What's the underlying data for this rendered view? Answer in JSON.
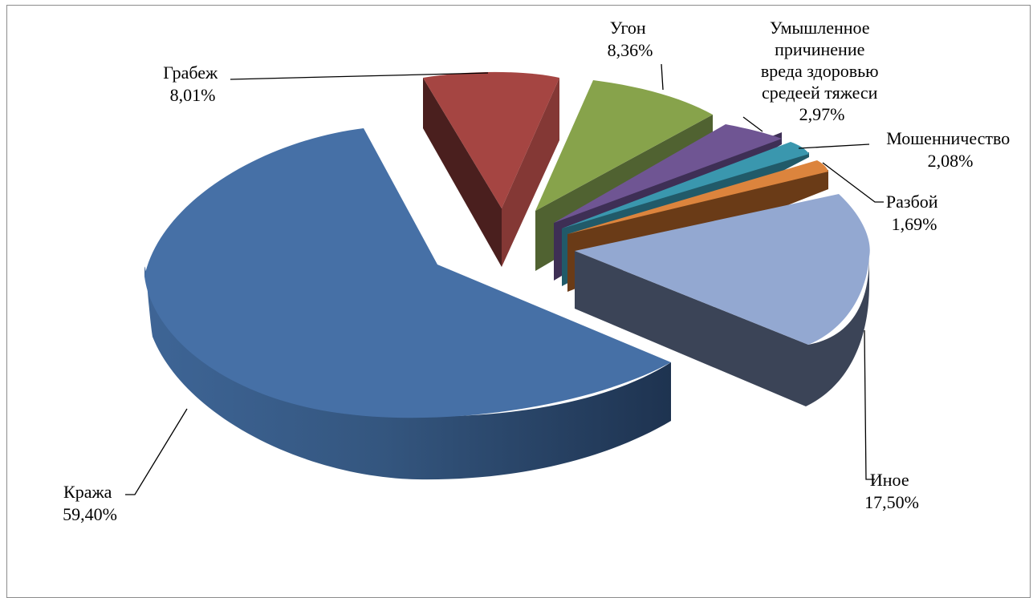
{
  "chart_data": {
    "type": "pie",
    "title": "",
    "style": "3d-exploded",
    "slices": [
      {
        "label": "Кража",
        "value": 59.4,
        "value_label": "59,40%",
        "color": "#4670A6",
        "side": "#2B4A74"
      },
      {
        "label": "Грабеж",
        "value": 8.01,
        "value_label": "8,01%",
        "color": "#A54542",
        "side": "#4A1F1E"
      },
      {
        "label": "Угон",
        "value": 8.36,
        "value_label": "8,36%",
        "color": "#87A34B",
        "side": "#506231"
      },
      {
        "label_lines": [
          "Умышленное",
          "причинение",
          "вреда здоровью",
          "средеей тяжеси"
        ],
        "value": 2.97,
        "value_label": "2,97%",
        "color": "#6F5593",
        "side": "#3E2F55"
      },
      {
        "label": "Мошенничество",
        "value": 2.08,
        "value_label": "2,08%",
        "color": "#3A97AE",
        "side": "#215A69"
      },
      {
        "label": "Разбой",
        "value": 1.69,
        "value_label": "1,69%",
        "color": "#DC843D",
        "side": "#6A3B17"
      },
      {
        "label": "Иное",
        "value": 17.5,
        "value_label": "17,50%",
        "color": "#93A8D1",
        "side": "#3B4457"
      }
    ]
  }
}
